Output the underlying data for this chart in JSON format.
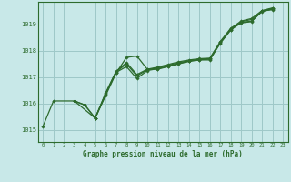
{
  "title": "Graphe pression niveau de la mer (hPa)",
  "bg_color": "#c8e8e8",
  "grid_color": "#9ec8c8",
  "line_color": "#2d6b2d",
  "xlim": [
    -0.5,
    23.5
  ],
  "ylim": [
    1014.55,
    1019.85
  ],
  "yticks": [
    1015,
    1016,
    1017,
    1018,
    1019
  ],
  "xticks": [
    0,
    1,
    2,
    3,
    4,
    5,
    6,
    7,
    8,
    9,
    10,
    11,
    12,
    13,
    14,
    15,
    16,
    17,
    18,
    19,
    20,
    21,
    22,
    23
  ],
  "series": [
    {
      "x": [
        0,
        1,
        3,
        4,
        5,
        6,
        7,
        8,
        9,
        10,
        11,
        12,
        13,
        14,
        15,
        16,
        17,
        18,
        19,
        20,
        21,
        22
      ],
      "y": [
        1015.15,
        1016.1,
        1016.1,
        1015.95,
        1015.45,
        1016.3,
        1017.15,
        1017.75,
        1017.8,
        1017.3,
        1017.3,
        1017.4,
        1017.5,
        1017.6,
        1017.65,
        1017.65,
        1018.3,
        1018.8,
        1019.05,
        1019.1,
        1019.5,
        1019.55
      ]
    },
    {
      "x": [
        3,
        4,
        5,
        6,
        7,
        8,
        9,
        10,
        11,
        12,
        13,
        14,
        15,
        16,
        17,
        18,
        19,
        20,
        21,
        22
      ],
      "y": [
        1016.1,
        1015.95,
        1015.45,
        1016.35,
        1017.18,
        1017.4,
        1016.95,
        1017.25,
        1017.32,
        1017.42,
        1017.52,
        1017.6,
        1017.66,
        1017.68,
        1018.28,
        1018.78,
        1019.07,
        1019.12,
        1019.48,
        1019.58
      ]
    },
    {
      "x": [
        3,
        5,
        6,
        7,
        8,
        9,
        10,
        11,
        12,
        13,
        14,
        15,
        16,
        17,
        18,
        19,
        20,
        21,
        22
      ],
      "y": [
        1016.1,
        1015.45,
        1016.38,
        1017.2,
        1017.5,
        1017.05,
        1017.28,
        1017.35,
        1017.45,
        1017.55,
        1017.62,
        1017.68,
        1017.7,
        1018.32,
        1018.82,
        1019.1,
        1019.18,
        1019.5,
        1019.6
      ]
    },
    {
      "x": [
        5,
        6,
        7,
        8,
        9,
        10,
        11,
        12,
        13,
        14,
        15,
        16,
        17,
        18,
        19,
        20,
        21,
        22
      ],
      "y": [
        1015.45,
        1016.4,
        1017.22,
        1017.55,
        1017.1,
        1017.3,
        1017.38,
        1017.48,
        1017.58,
        1017.65,
        1017.7,
        1017.72,
        1018.35,
        1018.85,
        1019.12,
        1019.22,
        1019.52,
        1019.62
      ]
    }
  ]
}
